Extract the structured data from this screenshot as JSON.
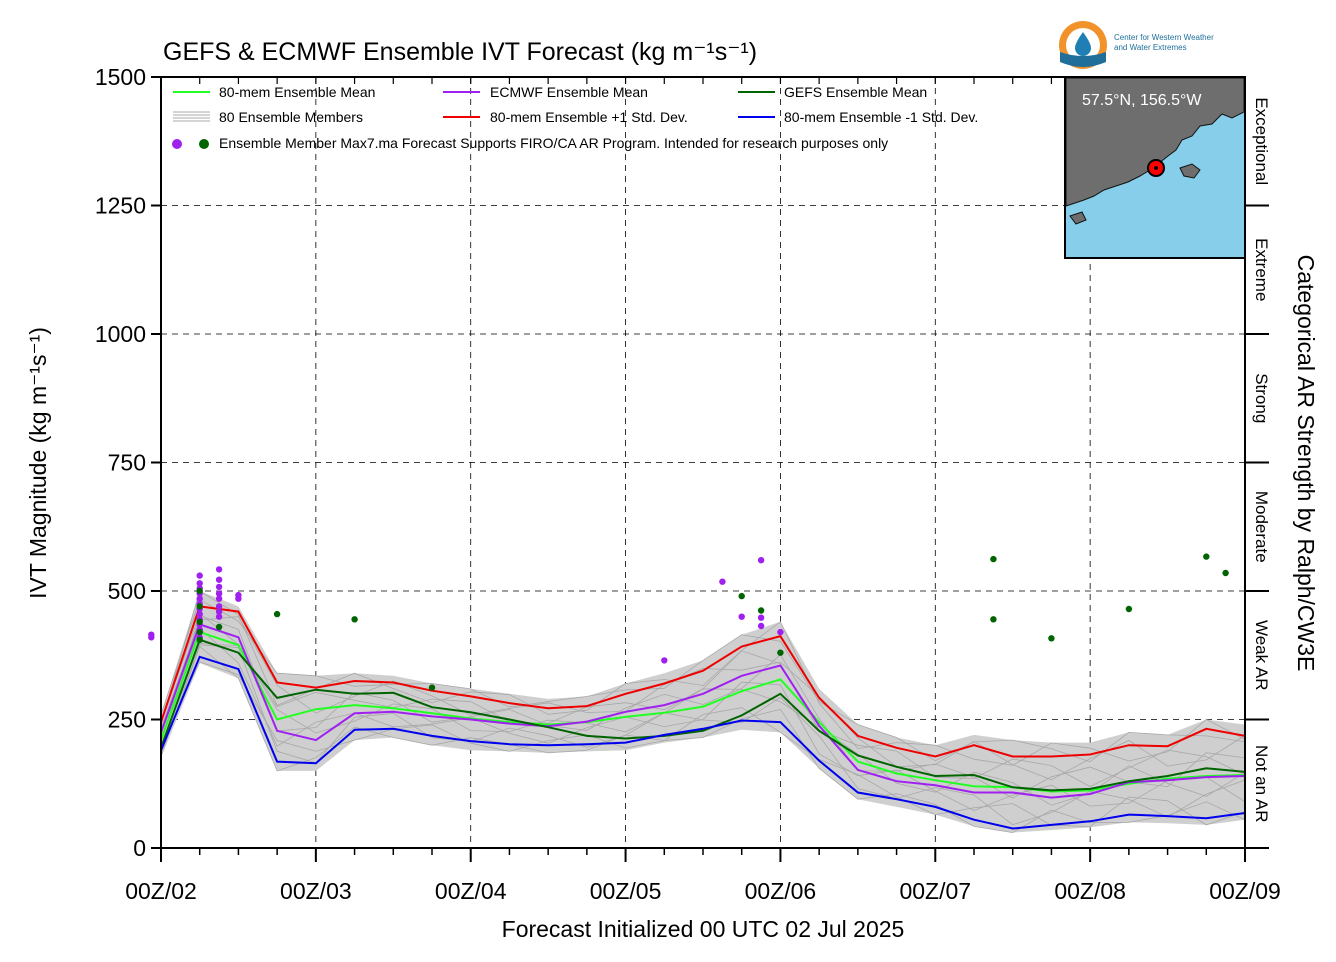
{
  "chart_data": {
    "type": "line",
    "title": "GEFS & ECMWF Ensemble IVT Forecast (kg m⁻¹s⁻¹)",
    "xlabel": "Forecast Initialized 00 UTC 02 Jul 2025",
    "ylabel": "IVT Magnitude (kg m⁻¹s⁻¹)",
    "right_label": "Categorical AR Strength by Ralph/CW3E",
    "ylim": [
      0,
      1500
    ],
    "xlim_hours": [
      0,
      168
    ],
    "grid": true,
    "y_ticks": [
      "0",
      "250",
      "500",
      "750",
      "1000",
      "1250",
      "1500"
    ],
    "x_ticks": [
      "00Z/02",
      "00Z/03",
      "00Z/04",
      "00Z/05",
      "00Z/06",
      "00Z/07",
      "00Z/08",
      "00Z/09"
    ],
    "categories_right": [
      "Not an AR",
      "Weak AR",
      "Moderate",
      "Strong",
      "Extreme",
      "Exceptional"
    ],
    "legend": {
      "placement": "top-left",
      "items": [
        {
          "label": "80-mem Ensemble Mean",
          "color": "#22ff22"
        },
        {
          "label": "ECMWF Ensemble Mean",
          "color": "#a020f0"
        },
        {
          "label": "GEFS Ensemble Mean",
          "color": "#006400"
        },
        {
          "label": "80 Ensemble Members",
          "color": "#aaaaaa"
        },
        {
          "label": "80-mem Ensemble +1 Std. Dev.",
          "color": "#ee0000"
        },
        {
          "label": "80-mem Ensemble -1 Std. Dev.",
          "color": "#0000ee"
        }
      ],
      "max_label": "Ensemble Member Max",
      "note": "7.ma  Forecast Supports FIRO/CA AR Program. Intended for research purposes only"
    },
    "inset": {
      "label": "57.5°N, 156.5°W"
    },
    "logo_text": [
      "Center for Western Weather",
      "and Water Extremes"
    ],
    "x_hours": [
      0,
      6,
      12,
      18,
      24,
      30,
      36,
      42,
      48,
      54,
      60,
      66,
      72,
      78,
      84,
      90,
      96,
      102,
      108,
      114,
      120,
      126,
      132,
      138,
      144,
      150,
      156,
      162,
      168
    ],
    "series": [
      {
        "name": "80-mem Ensemble Mean",
        "color": "#22ff22",
        "values": [
          210,
          420,
          395,
          250,
          270,
          278,
          272,
          262,
          252,
          245,
          240,
          245,
          255,
          263,
          275,
          305,
          328,
          245,
          168,
          145,
          132,
          120,
          118,
          110,
          112,
          125,
          135,
          140,
          142
        ]
      },
      {
        "name": "ECMWF Ensemble Mean",
        "color": "#a020f0",
        "values": [
          225,
          435,
          410,
          228,
          210,
          262,
          265,
          256,
          250,
          242,
          237,
          246,
          265,
          278,
          300,
          335,
          355,
          238,
          152,
          130,
          122,
          108,
          108,
          98,
          105,
          128,
          132,
          138,
          140
        ]
      },
      {
        "name": "GEFS Ensemble Mean",
        "color": "#006400",
        "values": [
          195,
          405,
          380,
          292,
          308,
          300,
          302,
          274,
          264,
          250,
          235,
          218,
          213,
          218,
          228,
          258,
          300,
          228,
          180,
          158,
          140,
          142,
          118,
          112,
          115,
          130,
          140,
          155,
          148
        ]
      },
      {
        "name": "80-mem Ensemble +1 Std. Dev.",
        "color": "#ee0000",
        "values": [
          245,
          470,
          460,
          322,
          312,
          325,
          322,
          306,
          295,
          282,
          272,
          276,
          300,
          320,
          345,
          392,
          412,
          292,
          218,
          195,
          178,
          200,
          178,
          178,
          182,
          200,
          198,
          232,
          218
        ]
      },
      {
        "name": "80-mem Ensemble -1 Std. Dev.",
        "color": "#0000ee",
        "values": [
          190,
          372,
          348,
          168,
          165,
          230,
          232,
          218,
          208,
          202,
          200,
          202,
          205,
          220,
          232,
          248,
          245,
          170,
          108,
          95,
          80,
          55,
          38,
          45,
          52,
          65,
          62,
          58,
          68
        ]
      }
    ],
    "members_envelope": {
      "upper": [
        260,
        500,
        470,
        340,
        335,
        340,
        335,
        320,
        310,
        300,
        290,
        295,
        320,
        340,
        365,
        415,
        440,
        310,
        240,
        215,
        200,
        220,
        210,
        205,
        205,
        225,
        220,
        250,
        240
      ],
      "lower": [
        175,
        360,
        330,
        150,
        150,
        210,
        215,
        200,
        190,
        188,
        185,
        188,
        190,
        205,
        215,
        230,
        225,
        155,
        95,
        80,
        65,
        42,
        30,
        35,
        40,
        50,
        48,
        45,
        55
      ]
    },
    "max_points": [
      {
        "h": -1.5,
        "v": 415,
        "src": "ECMWF"
      },
      {
        "h": -1.5,
        "v": 410,
        "src": "ECMWF"
      },
      {
        "h": 6,
        "v": 530,
        "src": "ECMWF"
      },
      {
        "h": 6,
        "v": 515,
        "src": "ECMWF"
      },
      {
        "h": 6,
        "v": 505,
        "src": "ECMWF"
      },
      {
        "h": 6,
        "v": 495,
        "src": "ECMWF"
      },
      {
        "h": 6,
        "v": 485,
        "src": "ECMWF"
      },
      {
        "h": 6,
        "v": 475,
        "src": "ECMWF"
      },
      {
        "h": 6,
        "v": 465,
        "src": "ECMWF"
      },
      {
        "h": 6,
        "v": 455,
        "src": "ECMWF"
      },
      {
        "h": 6,
        "v": 445,
        "src": "ECMWF"
      },
      {
        "h": 6,
        "v": 435,
        "src": "ECMWF"
      },
      {
        "h": 6,
        "v": 425,
        "src": "ECMWF"
      },
      {
        "h": 6,
        "v": 410,
        "src": "ECMWF"
      },
      {
        "h": 6,
        "v": 500,
        "src": "GEFS"
      },
      {
        "h": 6,
        "v": 470,
        "src": "GEFS"
      },
      {
        "h": 6,
        "v": 440,
        "src": "GEFS"
      },
      {
        "h": 6,
        "v": 420,
        "src": "GEFS"
      },
      {
        "h": 6,
        "v": 405,
        "src": "GEFS"
      },
      {
        "h": 9,
        "v": 542,
        "src": "ECMWF"
      },
      {
        "h": 9,
        "v": 522,
        "src": "ECMWF"
      },
      {
        "h": 9,
        "v": 508,
        "src": "ECMWF"
      },
      {
        "h": 9,
        "v": 495,
        "src": "ECMWF"
      },
      {
        "h": 9,
        "v": 485,
        "src": "ECMWF"
      },
      {
        "h": 9,
        "v": 470,
        "src": "ECMWF"
      },
      {
        "h": 9,
        "v": 460,
        "src": "ECMWF"
      },
      {
        "h": 9,
        "v": 450,
        "src": "ECMWF"
      },
      {
        "h": 9,
        "v": 430,
        "src": "GEFS"
      },
      {
        "h": 12,
        "v": 492,
        "src": "ECMWF"
      },
      {
        "h": 12,
        "v": 485,
        "src": "ECMWF"
      },
      {
        "h": 18,
        "v": 455,
        "src": "GEFS"
      },
      {
        "h": 30,
        "v": 445,
        "src": "GEFS"
      },
      {
        "h": 42,
        "v": 312,
        "src": "GEFS"
      },
      {
        "h": 78,
        "v": 365,
        "src": "ECMWF"
      },
      {
        "h": 87,
        "v": 518,
        "src": "ECMWF"
      },
      {
        "h": 90,
        "v": 450,
        "src": "ECMWF"
      },
      {
        "h": 90,
        "v": 490,
        "src": "GEFS"
      },
      {
        "h": 93,
        "v": 560,
        "src": "ECMWF"
      },
      {
        "h": 93,
        "v": 448,
        "src": "ECMWF"
      },
      {
        "h": 93,
        "v": 432,
        "src": "ECMWF"
      },
      {
        "h": 93,
        "v": 462,
        "src": "GEFS"
      },
      {
        "h": 96,
        "v": 420,
        "src": "ECMWF"
      },
      {
        "h": 96,
        "v": 380,
        "src": "GEFS"
      },
      {
        "h": 129,
        "v": 562,
        "src": "GEFS"
      },
      {
        "h": 129,
        "v": 445,
        "src": "GEFS"
      },
      {
        "h": 138,
        "v": 408,
        "src": "GEFS"
      },
      {
        "h": 150,
        "v": 465,
        "src": "GEFS"
      },
      {
        "h": 162,
        "v": 567,
        "src": "GEFS"
      },
      {
        "h": 165,
        "v": 535,
        "src": "GEFS"
      }
    ]
  }
}
